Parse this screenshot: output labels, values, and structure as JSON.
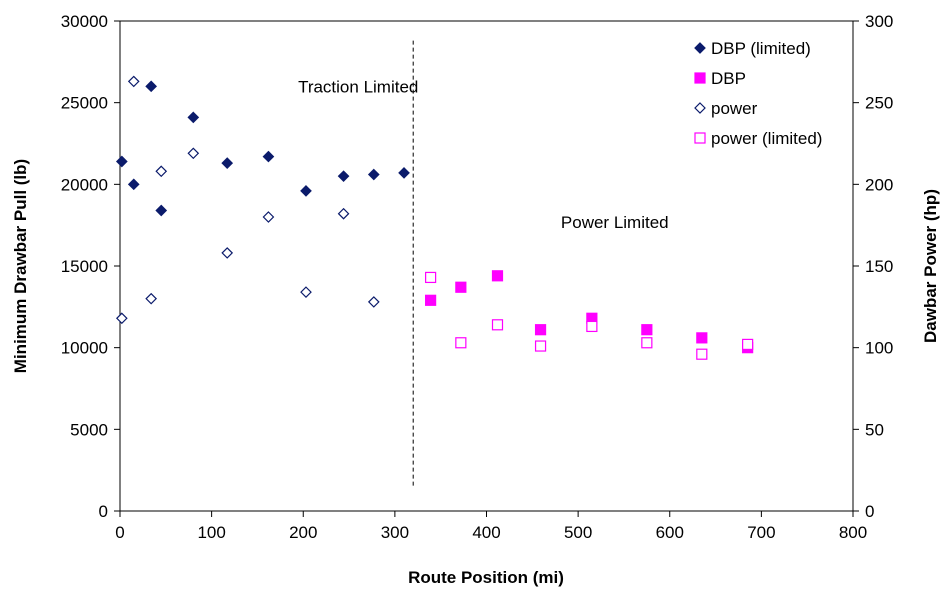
{
  "chart_data": {
    "type": "scatter",
    "xlabel": "Route Position (mi)",
    "ylabel": "Minimum Drawbar Pull (lb)",
    "y2label": "Dawbar Power (hp)",
    "xlim": [
      0,
      800
    ],
    "ylim": [
      0,
      30000
    ],
    "y2lim": [
      0,
      300
    ],
    "x_ticks": [
      "0",
      "100",
      "200",
      "300",
      "400",
      "500",
      "600",
      "700",
      "800"
    ],
    "y_ticks": [
      "0",
      "5000",
      "10000",
      "15000",
      "20000",
      "25000",
      "30000"
    ],
    "y2_ticks": [
      "0",
      "50",
      "100",
      "150",
      "200",
      "250",
      "300"
    ],
    "grid": false,
    "legend_position": "top-right",
    "annotations": [
      {
        "text": "Traction Limited",
        "x": 260,
        "y": 26000
      },
      {
        "text": "Power Limited",
        "x": 540,
        "y": 17700
      }
    ],
    "divider_x": 320,
    "series": [
      {
        "name": "DBP (limited)",
        "axis": "left",
        "marker": "filled-diamond",
        "color": "#0b1b6b",
        "points": [
          [
            2,
            21400
          ],
          [
            15,
            20000
          ],
          [
            34,
            26000
          ],
          [
            45,
            18400
          ],
          [
            80,
            24100
          ],
          [
            117,
            21300
          ],
          [
            162,
            21700
          ],
          [
            203,
            19600
          ],
          [
            244,
            20500
          ],
          [
            277,
            20600
          ],
          [
            310,
            20700
          ]
        ]
      },
      {
        "name": "DBP",
        "axis": "left",
        "marker": "filled-square",
        "color": "#ff00ff",
        "points": [
          [
            339,
            12900
          ],
          [
            372,
            13700
          ],
          [
            412,
            14400
          ],
          [
            459,
            11100
          ],
          [
            515,
            11800
          ],
          [
            575,
            11100
          ],
          [
            635,
            10600
          ],
          [
            685,
            10000
          ]
        ]
      },
      {
        "name": "power",
        "axis": "right",
        "marker": "open-diamond",
        "color": "#0b1b6b",
        "points": [
          [
            2,
            118
          ],
          [
            15,
            263
          ],
          [
            34,
            130
          ],
          [
            45,
            208
          ],
          [
            80,
            219
          ],
          [
            117,
            158
          ],
          [
            162,
            180
          ],
          [
            203,
            134
          ],
          [
            244,
            182
          ],
          [
            277,
            128
          ]
        ]
      },
      {
        "name": "power (limited)",
        "axis": "right",
        "marker": "open-square",
        "color": "#ff00ff",
        "points": [
          [
            339,
            143
          ],
          [
            372,
            103
          ],
          [
            412,
            114
          ],
          [
            459,
            101
          ],
          [
            515,
            113
          ],
          [
            575,
            103
          ],
          [
            635,
            96
          ],
          [
            685,
            102
          ]
        ]
      }
    ]
  }
}
